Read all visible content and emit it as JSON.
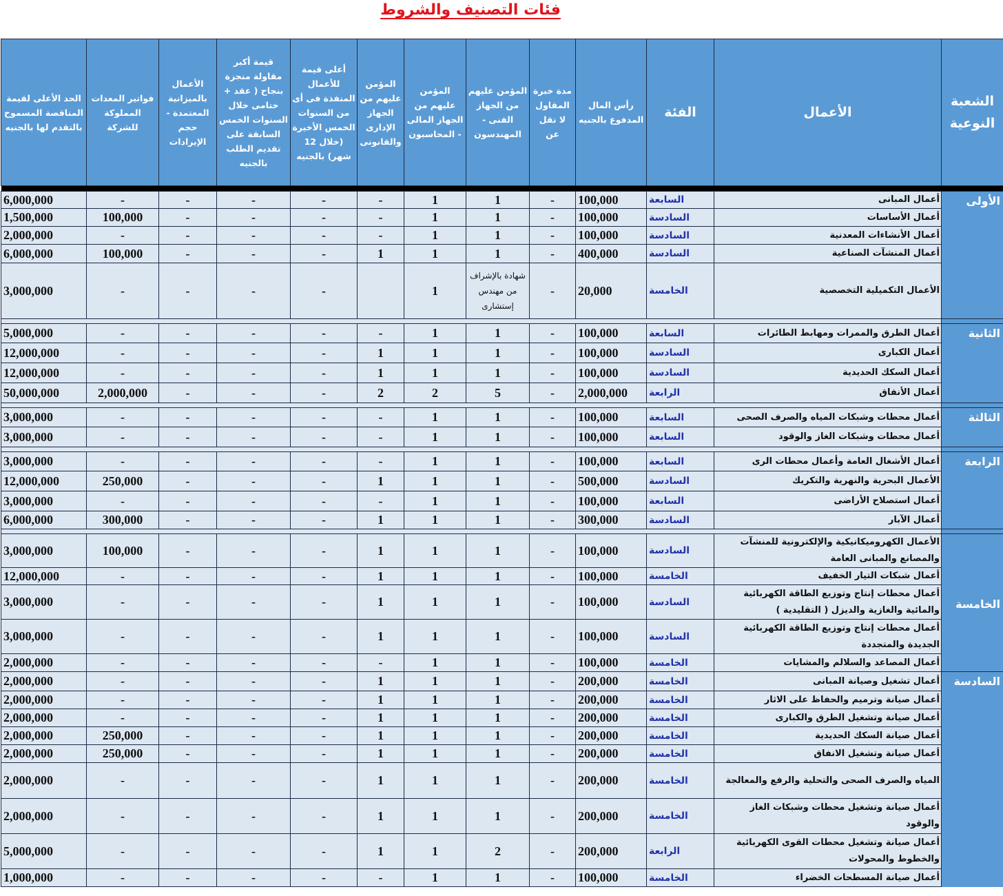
{
  "title": "فئات التصنيف والشروط",
  "headers": [
    "الشعبة النوعية",
    "الأعمال",
    "الفئة",
    "رأس المال المدفوع بالجنيه",
    "مدة خبرة المقاول لا تقل عن",
    "المؤمن عليهم من الجهاز الفنى - المهندسون",
    "المؤمن عليهم من الجهاز المالى - المحاسبون",
    "المؤمن عليهم من الجهاز الإدارى والقانونى",
    "أعلى قيمة للأعمال المنفذة فى أى من السنوات الخمس الأخيرة (خلال 12 شهر) بالجنيه",
    "قيمة أكبر مقاولة منجزة بنجاح ( عقد + ختامى خلال السنوات الخمس السابقة على تقديم الطلب بالجنيه",
    "الأعمال بالميزانية المعتمدة - حجم الإيرادات",
    "فواتير المعدات المملوكة للشركة",
    "الحد الأعلى لقيمة المناقصة المسموح بالتقدم لها بالجنيه"
  ],
  "colors": {
    "header_bg": "#5b9bd5",
    "body_bg": "#dde7f2",
    "title": "#e0141c",
    "category": "#2233aa"
  },
  "groups": [
    {
      "division": "الأولى",
      "rows": [
        {
          "works": "أعمال المبانى",
          "v": [
            "السابعة",
            "100,000",
            "-",
            "1",
            "1",
            "-",
            "-",
            "-",
            "-",
            "-",
            "6,000,000"
          ]
        },
        {
          "works": "أعمال الأساسات",
          "v": [
            "السادسة",
            "100,000",
            "-",
            "1",
            "1",
            "-",
            "-",
            "-",
            "-",
            "100,000",
            "1,500,000"
          ]
        },
        {
          "works": "أعمال الأنشاءات المعدنية",
          "v": [
            "السادسة",
            "100,000",
            "-",
            "1",
            "1",
            "-",
            "-",
            "-",
            "-",
            "-",
            "2,000,000"
          ]
        },
        {
          "works": "أعمال المنشآت الصناعية",
          "v": [
            "السادسة",
            "400,000",
            "-",
            "1",
            "1",
            "1",
            "-",
            "-",
            "-",
            "100,000",
            "6,000,000"
          ]
        },
        {
          "works": "الأعمال التكميلية التخصصية",
          "v": [
            "الخامسة",
            "20,000",
            "-",
            "شهادة بالإشراف من مهندس إستشارى",
            "1",
            "",
            "-",
            "-",
            "-",
            "-",
            "3,000,000"
          ]
        }
      ]
    },
    {
      "division": "الثانية",
      "rows": [
        {
          "works": "أعمال الطرق والممرات ومهابط الطائرات",
          "v": [
            "السابعة",
            "100,000",
            "-",
            "1",
            "1",
            "-",
            "-",
            "-",
            "-",
            "-",
            "5,000,000"
          ]
        },
        {
          "works": "أعمال الكبارى",
          "v": [
            "السادسة",
            "100,000",
            "-",
            "1",
            "1",
            "1",
            "-",
            "-",
            "-",
            "-",
            "12,000,000"
          ]
        },
        {
          "works": "أعمال السكك الحديدية",
          "v": [
            "السادسة",
            "100,000",
            "-",
            "1",
            "1",
            "1",
            "-",
            "-",
            "-",
            "-",
            "12,000,000"
          ]
        },
        {
          "works": "أعمال الأنفاق",
          "v": [
            "الرابعة",
            "2,000,000",
            "-",
            "5",
            "2",
            "2",
            "-",
            "-",
            "-",
            "2,000,000",
            "50,000,000"
          ]
        }
      ]
    },
    {
      "division": "الثالثة",
      "rows": [
        {
          "works": "أعمال محطات وشبكات المياه والصرف الصحى",
          "v": [
            "السابعة",
            "100,000",
            "-",
            "1",
            "1",
            "-",
            "-",
            "-",
            "-",
            "-",
            "3,000,000"
          ]
        },
        {
          "works": "أعمال محطات وشبكات الغاز والوقود",
          "v": [
            "السابعة",
            "100,000",
            "-",
            "1",
            "1",
            "-",
            "-",
            "-",
            "-",
            "-",
            "3,000,000"
          ]
        }
      ]
    },
    {
      "division": "الرابعة",
      "rows": [
        {
          "works": "أعمال الأشغال العامة وأعمال محطات الرى",
          "v": [
            "السابعة",
            "100,000",
            "-",
            "1",
            "1",
            "-",
            "-",
            "-",
            "-",
            "-",
            "3,000,000"
          ]
        },
        {
          "works": "الأعمال البحرية والنهرية والتكريك",
          "v": [
            "السادسة",
            "500,000",
            "-",
            "1",
            "1",
            "1",
            "-",
            "-",
            "-",
            "250,000",
            "12,000,000"
          ]
        },
        {
          "works": "أعمال استصلاح الأراضى",
          "v": [
            "السابعة",
            "100,000",
            "-",
            "1",
            "1",
            "-",
            "-",
            "-",
            "-",
            "-",
            "3,000,000"
          ]
        },
        {
          "works": "أعمال الآبار",
          "v": [
            "السادسة",
            "300,000",
            "-",
            "1",
            "1",
            "1",
            "-",
            "-",
            "-",
            "300,000",
            "6,000,000"
          ]
        }
      ]
    },
    {
      "division": "الخامسة",
      "rows": [
        {
          "works": "الأعمال الكهروميكانيكية والإلكترونية للمنشآت والمصانع والمبانى العامة",
          "v": [
            "السادسة",
            "100,000",
            "-",
            "1",
            "1",
            "1",
            "-",
            "-",
            "-",
            "100,000",
            "3,000,000"
          ]
        },
        {
          "works": "أعمال شبكات التيار الخفيف",
          "v": [
            "الخامسة",
            "100,000",
            "-",
            "1",
            "1",
            "1",
            "-",
            "-",
            "-",
            "-",
            "12,000,000"
          ]
        },
        {
          "works": "أعمال محطات إنتاج وتوزيع الطاقة الكهربائية والمائية والغازية والديزل ( التقليدية )",
          "v": [
            "السادسة",
            "100,000",
            "-",
            "1",
            "1",
            "1",
            "-",
            "-",
            "-",
            "-",
            "3,000,000"
          ]
        },
        {
          "works": "أعمال محطات إنتاج وتوزيع الطاقة الكهربائية الجديدة والمتجددة",
          "v": [
            "السادسة",
            "100,000",
            "-",
            "1",
            "1",
            "1",
            "-",
            "-",
            "-",
            "-",
            "3,000,000"
          ]
        },
        {
          "works": "أعمال المصاعد والسلالم والمشايات",
          "v": [
            "الخامسة",
            "100,000",
            "-",
            "1",
            "1",
            "-",
            "-",
            "-",
            "-",
            "-",
            "2,000,000"
          ]
        }
      ]
    },
    {
      "division": "السادسة",
      "rows": [
        {
          "works": "أعمال تشغيل وصيانة المبانى",
          "v": [
            "الخامسة",
            "200,000",
            "-",
            "1",
            "1",
            "1",
            "-",
            "-",
            "-",
            "-",
            "2,000,000"
          ]
        },
        {
          "works": "أعمال صيانة وترميم والحفاظ على الاثار",
          "v": [
            "الخامسة",
            "200,000",
            "-",
            "1",
            "1",
            "1",
            "-",
            "-",
            "-",
            "-",
            "2,000,000"
          ]
        },
        {
          "works": "أعمال صيانة وتشغيل الطرق والكبارى",
          "v": [
            "الخامسة",
            "200,000",
            "-",
            "1",
            "1",
            "1",
            "-",
            "-",
            "-",
            "-",
            "2,000,000"
          ]
        },
        {
          "works": "أعمال صيانة السكك الحديدية",
          "v": [
            "الخامسة",
            "200,000",
            "-",
            "1",
            "1",
            "1",
            "-",
            "-",
            "-",
            "250,000",
            "2,000,000"
          ]
        },
        {
          "works": "أعمال صيانة وتشغيل الانفاق",
          "v": [
            "الخامسة",
            "200,000",
            "-",
            "1",
            "1",
            "1",
            "-",
            "-",
            "-",
            "250,000",
            "2,000,000"
          ]
        },
        {
          "works": "المياه والصرف الصحى والتحلية والرفع والمعالجة",
          "v": [
            "الخامسة",
            "200,000",
            "-",
            "1",
            "1",
            "1",
            "-",
            "-",
            "-",
            "-",
            "2,000,000"
          ]
        },
        {
          "works": "أعمال صيانة وتشغيل محطات وشبكات الغاز والوقود",
          "v": [
            "الخامسة",
            "200,000",
            "-",
            "1",
            "1",
            "1",
            "-",
            "-",
            "-",
            "-",
            "2,000,000"
          ]
        },
        {
          "works": "أعمال صيانة وتشغيل محطات القوى الكهربائية والخطوط والمحولات",
          "v": [
            "الرابعة",
            "200,000",
            "-",
            "2",
            "1",
            "1",
            "-",
            "-",
            "-",
            "-",
            "5,000,000"
          ]
        },
        {
          "works": "أعمال صيانة المسطحات الخضراء",
          "v": [
            "الخامسة",
            "100,000",
            "-",
            "1",
            "1",
            "-",
            "-",
            "-",
            "-",
            "-",
            "1,000,000"
          ]
        }
      ]
    }
  ]
}
